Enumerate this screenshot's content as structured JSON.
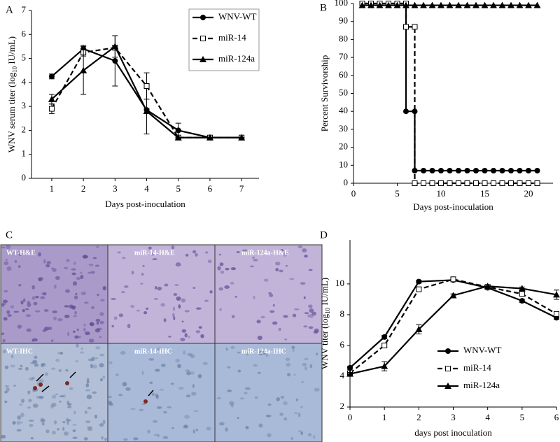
{
  "chart_data": [
    {
      "type": "line",
      "panel": "A",
      "x_label": "Days post-inoculation",
      "y_label": [
        "WNV serum titer (log",
        "10",
        " IU/mL)"
      ],
      "xlim": [
        0.36,
        7.55
      ],
      "xticks": [
        1,
        2,
        3,
        4,
        5,
        6,
        7
      ],
      "ylim": [
        0,
        7
      ],
      "yticks": [
        0,
        1,
        2,
        3,
        4,
        5,
        6,
        7
      ],
      "x": [
        1,
        2,
        3,
        4,
        5,
        6,
        7
      ],
      "legend": "top-right",
      "legend_frame": true,
      "series": [
        {
          "name": "WNV-WT",
          "color": "#000000",
          "marker": "circle",
          "dash": false,
          "values": [
            4.25,
            5.4,
            4.9,
            2.85,
            2.0,
            1.7,
            1.7
          ],
          "errors": [
            0.1,
            0.15,
            1.05,
            1.0,
            0.3,
            0,
            0
          ]
        },
        {
          "name": "miR-14",
          "color": "#000000",
          "marker": "square",
          "dash": true,
          "values": [
            2.9,
            5.25,
            5.45,
            3.85,
            1.7,
            1.7,
            1.7
          ],
          "errors": [
            0.2,
            0.15,
            0.1,
            0.55,
            0,
            0,
            0
          ]
        },
        {
          "name": "miR-124a",
          "color": "#000000",
          "marker": "triangle",
          "dash": false,
          "values": [
            3.3,
            4.5,
            5.5,
            2.8,
            1.7,
            1.7,
            1.7
          ],
          "errors": [
            0.2,
            1.0,
            0.45,
            0.1,
            0,
            0,
            0
          ]
        }
      ]
    },
    {
      "type": "line",
      "panel": "B",
      "x_label": "Days post-inoculation",
      "y_label": [
        "Percent Survivorship"
      ],
      "xlim": [
        0,
        22.8
      ],
      "xticks": [
        0,
        5,
        10,
        15,
        20
      ],
      "ylim": [
        0,
        100
      ],
      "yticks": [
        0,
        10,
        20,
        30,
        40,
        50,
        60,
        70,
        80,
        90,
        100
      ],
      "series": [
        {
          "color": "#000000",
          "marker": "circle",
          "dash": false,
          "x": [
            1,
            2,
            3,
            4,
            5,
            6,
            6,
            7,
            7,
            8,
            9,
            10,
            11,
            12,
            13,
            14,
            15,
            16,
            17,
            18,
            19,
            20,
            21
          ],
          "values": [
            100,
            100,
            100,
            100,
            100,
            100,
            40,
            40,
            7,
            7,
            7,
            7,
            7,
            7,
            7,
            7,
            7,
            7,
            7,
            7,
            7,
            7,
            7
          ]
        },
        {
          "color": "#000000",
          "marker": "square",
          "dash": true,
          "x": [
            1,
            2,
            3,
            4,
            5,
            6,
            6,
            7,
            7,
            8,
            9,
            10,
            11,
            12,
            13,
            14,
            15,
            16,
            17,
            18,
            19,
            20,
            21
          ],
          "values": [
            100,
            100,
            100,
            100,
            100,
            100,
            87,
            87,
            0,
            0,
            0,
            0,
            0,
            0,
            0,
            0,
            0,
            0,
            0,
            0,
            0,
            0,
            0
          ]
        },
        {
          "color": "#000000",
          "marker": "triangle",
          "dash": false,
          "x": [
            1,
            2,
            3,
            4,
            5,
            6,
            7,
            8,
            9,
            10,
            11,
            12,
            13,
            14,
            15,
            16,
            17,
            18,
            19,
            20,
            21
          ],
          "values": [
            99,
            99,
            99,
            99,
            99,
            99,
            99,
            99,
            99,
            99,
            99,
            99,
            99,
            99,
            99,
            99,
            99,
            99,
            99,
            99,
            99
          ]
        }
      ]
    },
    {
      "type": "line",
      "panel": "D",
      "x_label": "days post inoculation",
      "y_label": [
        "WNV titer (log",
        "10",
        " IU/mL)"
      ],
      "xlim": [
        0,
        6
      ],
      "xticks": [
        0,
        1,
        2,
        3,
        4,
        5,
        6
      ],
      "ylim": [
        2,
        12.86
      ],
      "yticks": [
        2,
        4,
        6,
        8,
        10
      ],
      "x": [
        0,
        1,
        2,
        3,
        4,
        5,
        6
      ],
      "legend": "bottom-right",
      "legend_frame": false,
      "series": [
        {
          "name": "WNV-WT",
          "color": "#000000",
          "marker": "circle",
          "dash": false,
          "values": [
            4.55,
            6.55,
            10.15,
            10.25,
            9.75,
            8.9,
            7.8
          ],
          "errors": [
            0.1,
            0.1,
            0.1,
            0.1,
            0.1,
            0.1,
            0.1
          ]
        },
        {
          "name": "miR-14",
          "color": "#000000",
          "marker": "square",
          "dash": true,
          "values": [
            4.2,
            6.0,
            9.65,
            10.3,
            9.8,
            9.35,
            8.05
          ],
          "errors": [
            0.1,
            0.1,
            0.1,
            0.1,
            0.1,
            0.1,
            0.15
          ]
        },
        {
          "name": "miR-124a",
          "color": "#000000",
          "marker": "triangle",
          "dash": false,
          "values": [
            4.15,
            4.65,
            7.05,
            9.25,
            9.85,
            9.7,
            9.3
          ],
          "errors": [
            0.1,
            0.3,
            0.3,
            0.1,
            0.1,
            0.1,
            0.3
          ]
        }
      ]
    }
  ],
  "images": {
    "panel": "C",
    "labels": [
      "WT-H&E",
      "miR-14-H&E",
      "miR-124a-H&E",
      "WT-IHC",
      "miR-14-IHC",
      "miR-124a-IHC"
    ]
  }
}
